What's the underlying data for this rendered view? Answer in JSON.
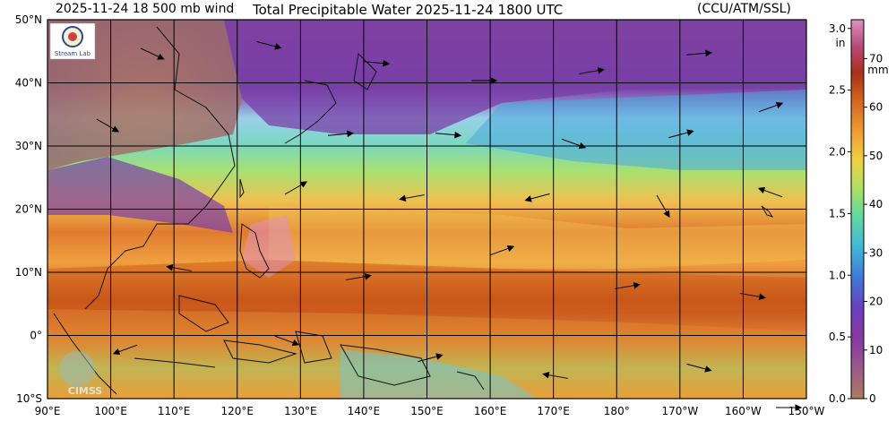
{
  "header": {
    "left_text": "2025-11-24 18 500 mb wind",
    "title": "Total Precipitable Water  2025-11-24 1800 UTC",
    "credit": "(CCU/ATM/SSL)"
  },
  "map": {
    "lat_labels": [
      "50°N",
      "40°N",
      "30°N",
      "20°N",
      "10°N",
      "0°",
      "10°S"
    ],
    "lon_labels": [
      "90°E",
      "100°E",
      "110°E",
      "120°E",
      "130°E",
      "140°E",
      "150°E",
      "160°E",
      "170°E",
      "180°",
      "170°W",
      "160°W",
      "150°W"
    ],
    "extent": {
      "lon_min": 90,
      "lon_max": 210,
      "lat_min": -10,
      "lat_max": 50
    },
    "logos": {
      "top_left": "Stream Lab",
      "bottom_left": "CIMSS"
    }
  },
  "colorbar": {
    "inches_unit": "in",
    "mm_unit": "mm",
    "inch_ticks": [
      "3.0",
      "2.5",
      "2.0",
      "1.5",
      "1.0",
      "0.5",
      "0.0"
    ],
    "inch_values": [
      3.0,
      2.5,
      2.0,
      1.5,
      1.0,
      0.5,
      0.0
    ],
    "mm_ticks": [
      "70",
      "60",
      "50",
      "40",
      "30",
      "20",
      "10",
      "0"
    ],
    "mm_values": [
      70,
      60,
      50,
      40,
      30,
      20,
      10,
      0
    ],
    "range_mm": [
      0,
      78
    ],
    "colors": [
      "#b07a5e",
      "#8c3a8c",
      "#7a3fb0",
      "#3f6fd8",
      "#3fb0d8",
      "#5fd8a0",
      "#a8e060",
      "#f0d040",
      "#f0a030",
      "#d86a20",
      "#b03a1a",
      "#c85a8a",
      "#e090c0"
    ]
  }
}
